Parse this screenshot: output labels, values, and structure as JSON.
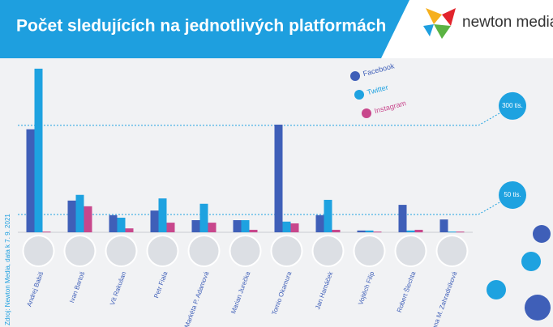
{
  "chart_data": {
    "type": "bar",
    "title": "Počet sledujících na jednotlivých platformách",
    "brand": "newton media",
    "source": "Zdroj: Newton Media, data k 7. 9. 2021",
    "categories": [
      "Andrej Babiš",
      "Ivan Bartoš",
      "Vít Rakušan",
      "Petr Fiala",
      "Markéta P. Adamová",
      "Marian Jurečka",
      "Tomio Okamura",
      "Jan Hamáček",
      "Vojtěch Filip",
      "Robert Šlechta",
      "Zuzana M. Zahradníková"
    ],
    "series": [
      {
        "name": "Facebook",
        "color": "#3f5fb8",
        "values": [
          289,
          89,
          48,
          61,
          34,
          34,
          302,
          48,
          5,
          77,
          36
        ]
      },
      {
        "name": "Twitter",
        "color": "#1ea2e0",
        "values": [
          459,
          105,
          41,
          95,
          80,
          34,
          30,
          91,
          5,
          5,
          2
        ]
      },
      {
        "name": "Instagram",
        "color": "#c8478c",
        "values": [
          2,
          73,
          11,
          27,
          27,
          7,
          25,
          7,
          2,
          7,
          2
        ]
      }
    ],
    "ylim": [
      0,
      470
    ],
    "yticks": [
      {
        "value": 50,
        "label": "50 tis."
      },
      {
        "value": 300,
        "label": "300 tis."
      }
    ]
  }
}
